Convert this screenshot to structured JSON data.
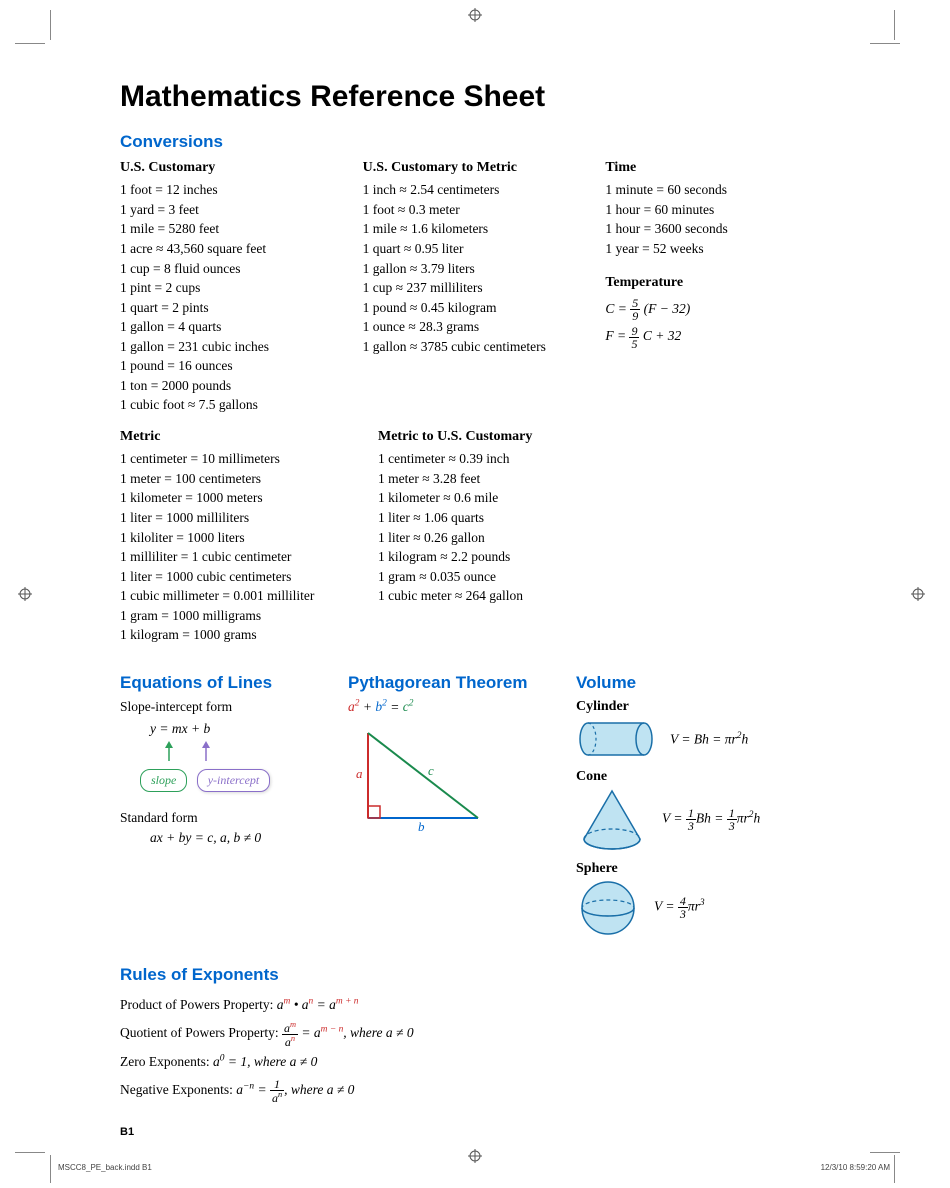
{
  "title": "Mathematics Reference Sheet",
  "section_conversions": "Conversions",
  "us_customary": {
    "head": "U.S. Customary",
    "items": [
      "1 foot = 12 inches",
      "1 yard = 3 feet",
      "1 mile = 5280 feet",
      "1 acre ≈ 43,560 square feet",
      "1 cup = 8 fluid ounces",
      "1 pint = 2 cups",
      "1 quart = 2 pints",
      "1 gallon = 4 quarts",
      "1 gallon = 231 cubic inches",
      "1 pound = 16 ounces",
      "1 ton = 2000 pounds",
      "1 cubic foot ≈ 7.5 gallons"
    ]
  },
  "us_to_metric": {
    "head": "U.S. Customary to Metric",
    "items": [
      "1 inch ≈ 2.54 centimeters",
      "1 foot ≈ 0.3 meter",
      "1 mile ≈ 1.6 kilometers",
      "1 quart ≈ 0.95 liter",
      "1 gallon ≈ 3.79 liters",
      "1 cup ≈ 237 milliliters",
      "1 pound ≈ 0.45 kilogram",
      "1 ounce ≈ 28.3 grams",
      "1 gallon ≈ 3785 cubic centimeters"
    ]
  },
  "time": {
    "head": "Time",
    "items": [
      "1 minute = 60 seconds",
      "1 hour = 60 minutes",
      "1 hour = 3600 seconds",
      "1 year = 52 weeks"
    ]
  },
  "temperature": {
    "head": "Temperature"
  },
  "metric": {
    "head": "Metric",
    "items": [
      "1 centimeter = 10 millimeters",
      "1 meter = 100 centimeters",
      "1 kilometer = 1000 meters",
      "1 liter = 1000 milliliters",
      "1 kiloliter = 1000 liters",
      "1 milliliter = 1 cubic centimeter",
      "1 liter = 1000 cubic centimeters",
      "1 cubic millimeter = 0.001 milliliter",
      "1 gram = 1000 milligrams",
      "1 kilogram = 1000 grams"
    ]
  },
  "metric_to_us": {
    "head": "Metric to U.S. Customary",
    "items": [
      "1 centimeter ≈ 0.39 inch",
      "1 meter ≈ 3.28 feet",
      "1 kilometer ≈ 0.6 mile",
      "1 liter ≈ 1.06 quarts",
      "1 liter ≈ 0.26 gallon",
      "1 kilogram ≈ 2.2 pounds",
      "1 gram ≈ 0.035 ounce",
      "1 cubic meter ≈ 264 gallon"
    ]
  },
  "lines": {
    "head": "Equations of Lines",
    "slope_intercept_label": "Slope-intercept form",
    "slope_intercept_formula": "y = mx + b",
    "slope_tag": "slope",
    "yint_tag": "y-intercept",
    "standard_label": "Standard form",
    "standard_formula": "ax + by = c, a, b ≠ 0"
  },
  "pythag": {
    "head": "Pythagorean Theorem",
    "a": "a",
    "b": "b",
    "c": "c"
  },
  "volume": {
    "head": "Volume",
    "cylinder": "Cylinder",
    "cone": "Cone",
    "sphere": "Sphere"
  },
  "exponents": {
    "head": "Rules of Exponents",
    "product_label": "Product of Powers Property:  ",
    "quotient_label": "Quotient of Powers Property:  ",
    "quotient_cond": ", where a ≠ 0",
    "zero_label": "Zero Exponents:  ",
    "zero_cond": " = 1, where a ≠ 0",
    "neg_label": "Negative Exponents:  ",
    "neg_cond": ", where a ≠ 0"
  },
  "colors": {
    "heading_blue": "#0066cc",
    "red": "#cc2b2b",
    "green": "#1a8a4d",
    "blue": "#0066cc",
    "tag_green": "#2da05a",
    "tag_purple": "#8a6fc9",
    "shape_fill": "#bfe3f2",
    "shape_stroke": "#1a6fa8"
  },
  "page_number": "B1",
  "footer_file": "MSCC8_PE_back.indd   B1",
  "footer_date": "12/3/10   8:59:20 AM"
}
